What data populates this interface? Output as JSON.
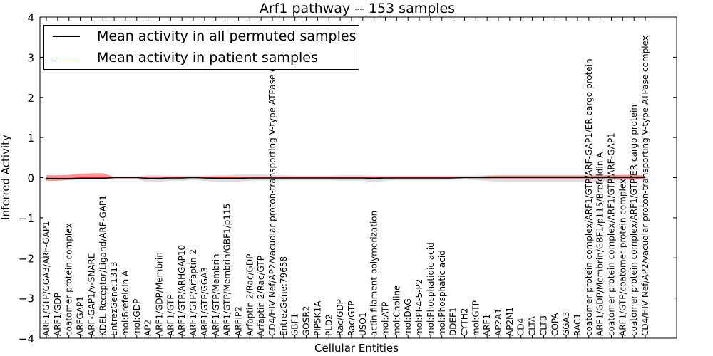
{
  "chart_data": {
    "type": "line",
    "title": "Arf1 pathway -- 153 samples",
    "xlabel": "Cellular Entities",
    "ylabel": "Inferred Activity",
    "ylim": [
      -4,
      4
    ],
    "yticks": [
      "4",
      "3",
      "2",
      "1",
      "0",
      "−1",
      "−2",
      "−3",
      "−4"
    ],
    "grid": false,
    "legend_position": "top-left",
    "categories": [
      "ARF1/GTP/GGA3/ARF-GAP1",
      "ARF1/GDP",
      "coatomer protein complex",
      "ARFGAP1",
      "ARF-GAP1/v-SNARE",
      "KDEL Receptor/Ligand/ARF-GAP1",
      "EntrezGene:1313",
      "mol:Brefeldin A",
      "mol:GDP",
      "AP2",
      "ARF1/GDP/Membrin",
      "ARF1/GTP",
      "ARF1/GTP/ARHGAP10",
      "ARF1/GTP/Arfaptin 2",
      "ARF1/GTP/GGA3",
      "ARF1/GTP/Membrin",
      "ARF1/GTP/Membrin/GBF1/p115",
      "ARFIP2",
      "Arfaptin 2/Rac/GDP",
      "Arfaptin 2/Rac/GTP",
      "CD4/HIV Nef/AP2/vacuolar proton-transporting V-type ATPase complex",
      "EntrezGene:79658",
      "GBF1",
      "GOSR2",
      "PIP5K1A",
      "PLD2",
      "Rac/GDP",
      "Rac/GTP",
      "USO1",
      "actin filament polymerization",
      "mol:ATP",
      "mol:Choline",
      "mol:DAG",
      "mol:PI-4-5-P2",
      "mol:Phosphatidic acid",
      "mol:Phosphatic acid",
      "DDEF1",
      "CYTH2",
      "mol:GTP",
      "ARF1",
      "AP2A1",
      "AP2M1",
      "CD4",
      "CLTA",
      "CLTB",
      "COPA",
      "GGA3",
      "RAC1",
      "coatomer protein complex/ARF1/GTP/ARF-GAP1/ER cargo protein",
      "ARF1/GDP/Membrin/GBF1/p115/Brefeldin A",
      "coatomer protein complex/ARF1/GTP/ARF-GAP1",
      "ARF1/GTP/coatomer protein complex",
      "coatomer protein complex/ARF1/GTP/ER cargo protein",
      "CD4/HIV Nef/AP2/vacuolar proton-transporting V-type ATPase complex"
    ],
    "series": [
      {
        "name": "Mean activity in all permuted samples",
        "color": "#000000",
        "values": [
          -0.02,
          -0.02,
          -0.02,
          -0.02,
          -0.02,
          -0.02,
          0.0,
          0.0,
          0.0,
          -0.02,
          -0.02,
          -0.01,
          -0.01,
          0.0,
          -0.01,
          -0.02,
          -0.02,
          -0.02,
          -0.01,
          -0.01,
          -0.01,
          -0.01,
          -0.01,
          -0.01,
          -0.01,
          -0.01,
          -0.01,
          -0.01,
          -0.01,
          -0.02,
          -0.01,
          -0.01,
          -0.01,
          -0.01,
          -0.01,
          -0.01,
          -0.01,
          0.0,
          0.0,
          0.0,
          0.0,
          0.0,
          0.0,
          0.0,
          0.0,
          0.0,
          0.0,
          0.0,
          0.0,
          0.0,
          0.0,
          0.0,
          0.0,
          0.0
        ],
        "band": {
          "lower": [
            -0.05,
            -0.05,
            -0.05,
            -0.05,
            -0.05,
            -0.05,
            -0.03,
            -0.03,
            -0.03,
            -0.12,
            -0.1,
            -0.08,
            -0.08,
            -0.06,
            -0.08,
            -0.1,
            -0.1,
            -0.1,
            -0.08,
            -0.07,
            -0.08,
            -0.07,
            -0.06,
            -0.06,
            -0.06,
            -0.06,
            -0.08,
            -0.08,
            -0.08,
            -0.12,
            -0.08,
            -0.06,
            -0.06,
            -0.06,
            -0.06,
            -0.06,
            -0.05,
            -0.05,
            -0.06,
            -0.08,
            -0.1,
            -0.1,
            -0.1,
            -0.1,
            -0.1,
            -0.1,
            -0.1,
            -0.1,
            -0.1,
            -0.1,
            -0.08,
            -0.07,
            -0.06,
            -0.05
          ],
          "upper": [
            0.02,
            0.02,
            0.02,
            0.02,
            0.02,
            0.02,
            0.03,
            0.03,
            0.03,
            0.06,
            0.06,
            0.05,
            0.05,
            0.05,
            0.05,
            0.06,
            0.06,
            0.08,
            0.08,
            0.08,
            0.07,
            0.06,
            0.05,
            0.05,
            0.05,
            0.05,
            0.06,
            0.06,
            0.06,
            0.05,
            0.05,
            0.05,
            0.05,
            0.05,
            0.05,
            0.05,
            0.05,
            0.05,
            0.05,
            0.06,
            0.07,
            0.07,
            0.07,
            0.07,
            0.07,
            0.07,
            0.07,
            0.07,
            0.07,
            0.07,
            0.06,
            0.05,
            0.05,
            0.05
          ]
        }
      },
      {
        "name": "Mean activity in patient samples",
        "color": "#ff0000",
        "values": [
          -0.03,
          -0.03,
          -0.02,
          0.0,
          0.0,
          0.0,
          0.0,
          0.0,
          0.0,
          -0.01,
          -0.01,
          0.0,
          0.0,
          0.0,
          0.0,
          0.0,
          0.0,
          0.0,
          0.0,
          0.0,
          0.0,
          0.0,
          0.0,
          0.0,
          0.0,
          0.0,
          0.0,
          0.0,
          0.0,
          0.0,
          0.0,
          0.0,
          0.0,
          0.0,
          0.0,
          0.0,
          0.0,
          0.0,
          0.0,
          0.0,
          0.01,
          0.01,
          0.01,
          0.01,
          0.01,
          0.01,
          0.01,
          0.01,
          0.01,
          0.01,
          0.01,
          0.01,
          0.01,
          0.0
        ],
        "band": {
          "lower": [
            -0.08,
            -0.08,
            -0.06,
            -0.04,
            -0.04,
            -0.04,
            -0.01,
            -0.01,
            -0.01,
            -0.02,
            -0.02,
            -0.01,
            -0.01,
            -0.01,
            -0.01,
            -0.01,
            -0.01,
            -0.01,
            -0.01,
            -0.01,
            -0.01,
            -0.01,
            -0.01,
            -0.01,
            -0.01,
            -0.01,
            -0.01,
            -0.01,
            -0.01,
            -0.01,
            -0.01,
            -0.01,
            -0.01,
            -0.01,
            -0.01,
            -0.01,
            -0.01,
            -0.01,
            -0.01,
            -0.02,
            -0.02,
            -0.02,
            -0.02,
            -0.02,
            -0.02,
            -0.02,
            -0.02,
            -0.02,
            -0.02,
            -0.02,
            -0.02,
            -0.03,
            -0.03,
            -0.02
          ],
          "upper": [
            0.06,
            0.06,
            0.07,
            0.1,
            0.11,
            0.11,
            0.02,
            0.02,
            0.02,
            0.01,
            0.01,
            0.01,
            0.01,
            0.01,
            0.01,
            0.01,
            0.01,
            0.01,
            0.01,
            0.01,
            0.01,
            0.01,
            0.01,
            0.01,
            0.01,
            0.01,
            0.01,
            0.01,
            0.01,
            0.01,
            0.01,
            0.01,
            0.01,
            0.01,
            0.01,
            0.01,
            0.01,
            0.01,
            0.02,
            0.04,
            0.05,
            0.05,
            0.05,
            0.05,
            0.05,
            0.05,
            0.05,
            0.05,
            0.05,
            0.05,
            0.06,
            0.07,
            0.07,
            0.05
          ]
        }
      }
    ]
  }
}
